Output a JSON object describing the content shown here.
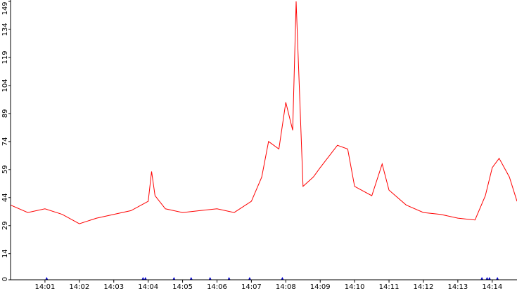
{
  "chart_data": {
    "type": "line",
    "title": "",
    "xlabel": "",
    "ylabel": "",
    "ylim": [
      0,
      149
    ],
    "y_ticks": [
      0,
      14,
      29,
      44,
      59,
      74,
      89,
      104,
      119,
      134,
      149
    ],
    "x_tick_labels": [
      "14:01",
      "14:02",
      "14:03",
      "14:04",
      "14:05",
      "14:06",
      "14:07",
      "14:08",
      "14:09",
      "14:10",
      "14:11",
      "14:12",
      "14:13",
      "14:14"
    ],
    "x_range_minutes": [
      0.0,
      14.72
    ],
    "grid": false,
    "legend": "none",
    "colors": {
      "series": "#ff0000",
      "markers": "#0000cc",
      "axis": "#000000",
      "background": "#ffffff"
    },
    "series": [
      {
        "x": [
          0.0,
          0.5,
          1.0,
          1.5,
          2.0,
          2.5,
          3.0,
          3.5,
          4.0,
          4.1,
          4.2,
          4.5,
          5.0,
          5.5,
          6.0,
          6.5,
          7.0,
          7.3,
          7.5,
          7.8,
          8.0,
          8.2,
          8.3,
          8.5,
          8.8,
          9.0,
          9.5,
          9.8,
          10.0,
          10.5,
          10.8,
          11.0,
          11.5,
          12.0,
          12.5,
          13.0,
          13.5,
          13.8,
          14.0,
          14.2,
          14.5,
          14.72
        ],
        "values": [
          40,
          36,
          38,
          35,
          30,
          33,
          35,
          37,
          42,
          58,
          45,
          38,
          36,
          37,
          38,
          36,
          42,
          55,
          74,
          70,
          95,
          80,
          149,
          50,
          55,
          60,
          72,
          70,
          50,
          45,
          62,
          48,
          40,
          36,
          35,
          33,
          32,
          45,
          60,
          65,
          55,
          42
        ]
      }
    ],
    "markers": {
      "x": [
        1.05,
        3.85,
        3.92,
        4.75,
        5.25,
        5.8,
        6.35,
        6.95,
        7.9,
        13.7,
        13.85,
        13.92,
        14.15
      ],
      "values": [
        0,
        0,
        0,
        0,
        0,
        0,
        0,
        0,
        0,
        0,
        0,
        0,
        0
      ]
    }
  }
}
